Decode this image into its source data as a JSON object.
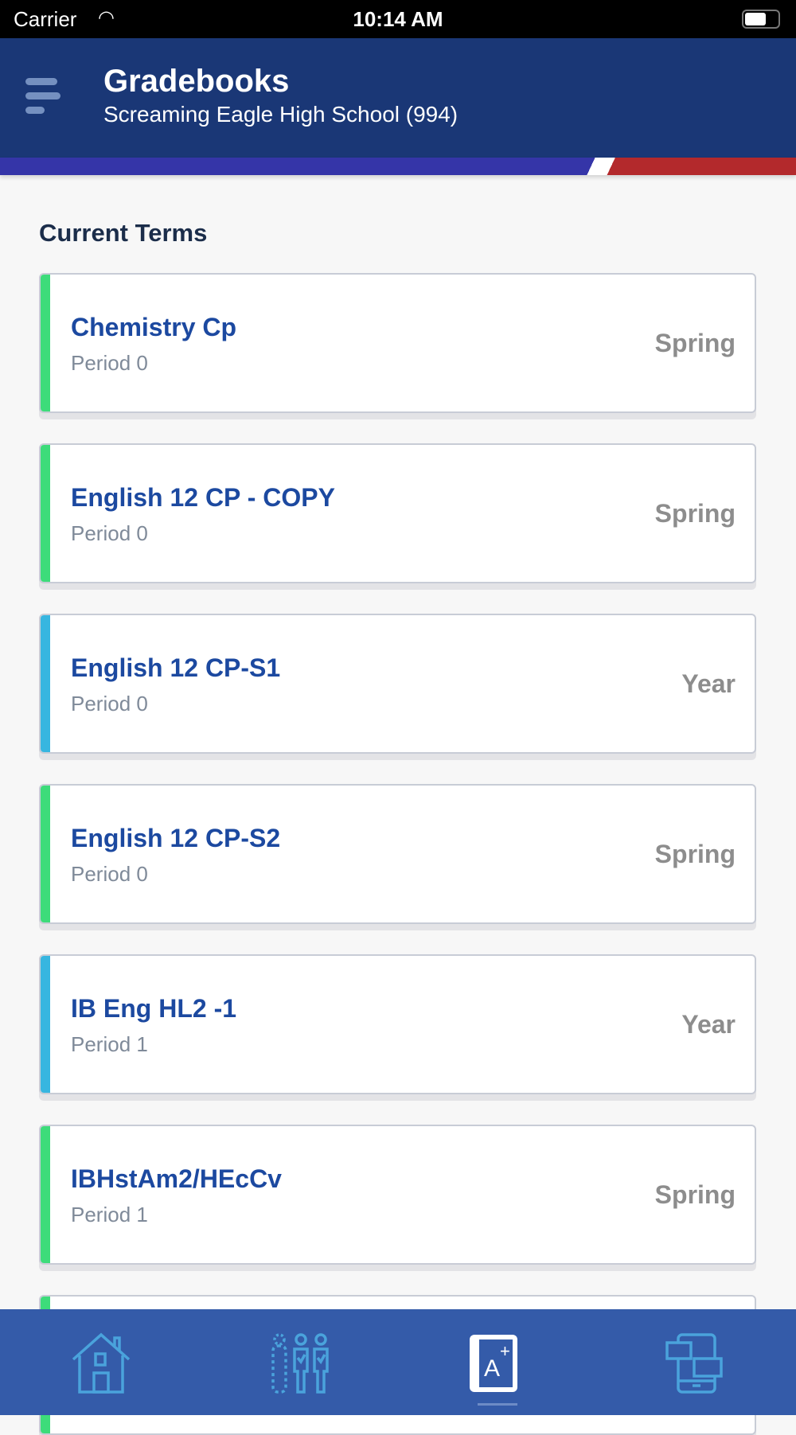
{
  "status_bar": {
    "carrier": "Carrier",
    "time": "10:14 AM"
  },
  "header": {
    "title": "Gradebooks",
    "subtitle": "Screaming Eagle High School (994)"
  },
  "section_title": "Current Terms",
  "colors": {
    "header": "#1a3776",
    "nav": "#345ba9",
    "green": "#3ddc7a",
    "blue": "#37b6e0"
  },
  "courses": [
    {
      "name": "Chemistry Cp",
      "period": "Period 0",
      "term": "Spring",
      "color": "#3ddc7a"
    },
    {
      "name": "English 12 CP - COPY",
      "period": "Period 0",
      "term": "Spring",
      "color": "#3ddc7a"
    },
    {
      "name": "English 12 CP-S1",
      "period": "Period 0",
      "term": "Year",
      "color": "#37b6e0"
    },
    {
      "name": "English 12 CP-S2",
      "period": "Period 0",
      "term": "Spring",
      "color": "#3ddc7a"
    },
    {
      "name": "IB Eng HL2 -1",
      "period": "Period 1",
      "term": "Year",
      "color": "#37b6e0"
    },
    {
      "name": "IBHstAm2/HEcCv",
      "period": "Period 1",
      "term": "Spring",
      "color": "#3ddc7a"
    }
  ],
  "nav": [
    {
      "icon": "home-icon"
    },
    {
      "icon": "attendance-icon"
    },
    {
      "icon": "gradebook-icon",
      "active": true
    },
    {
      "icon": "messages-icon"
    }
  ]
}
